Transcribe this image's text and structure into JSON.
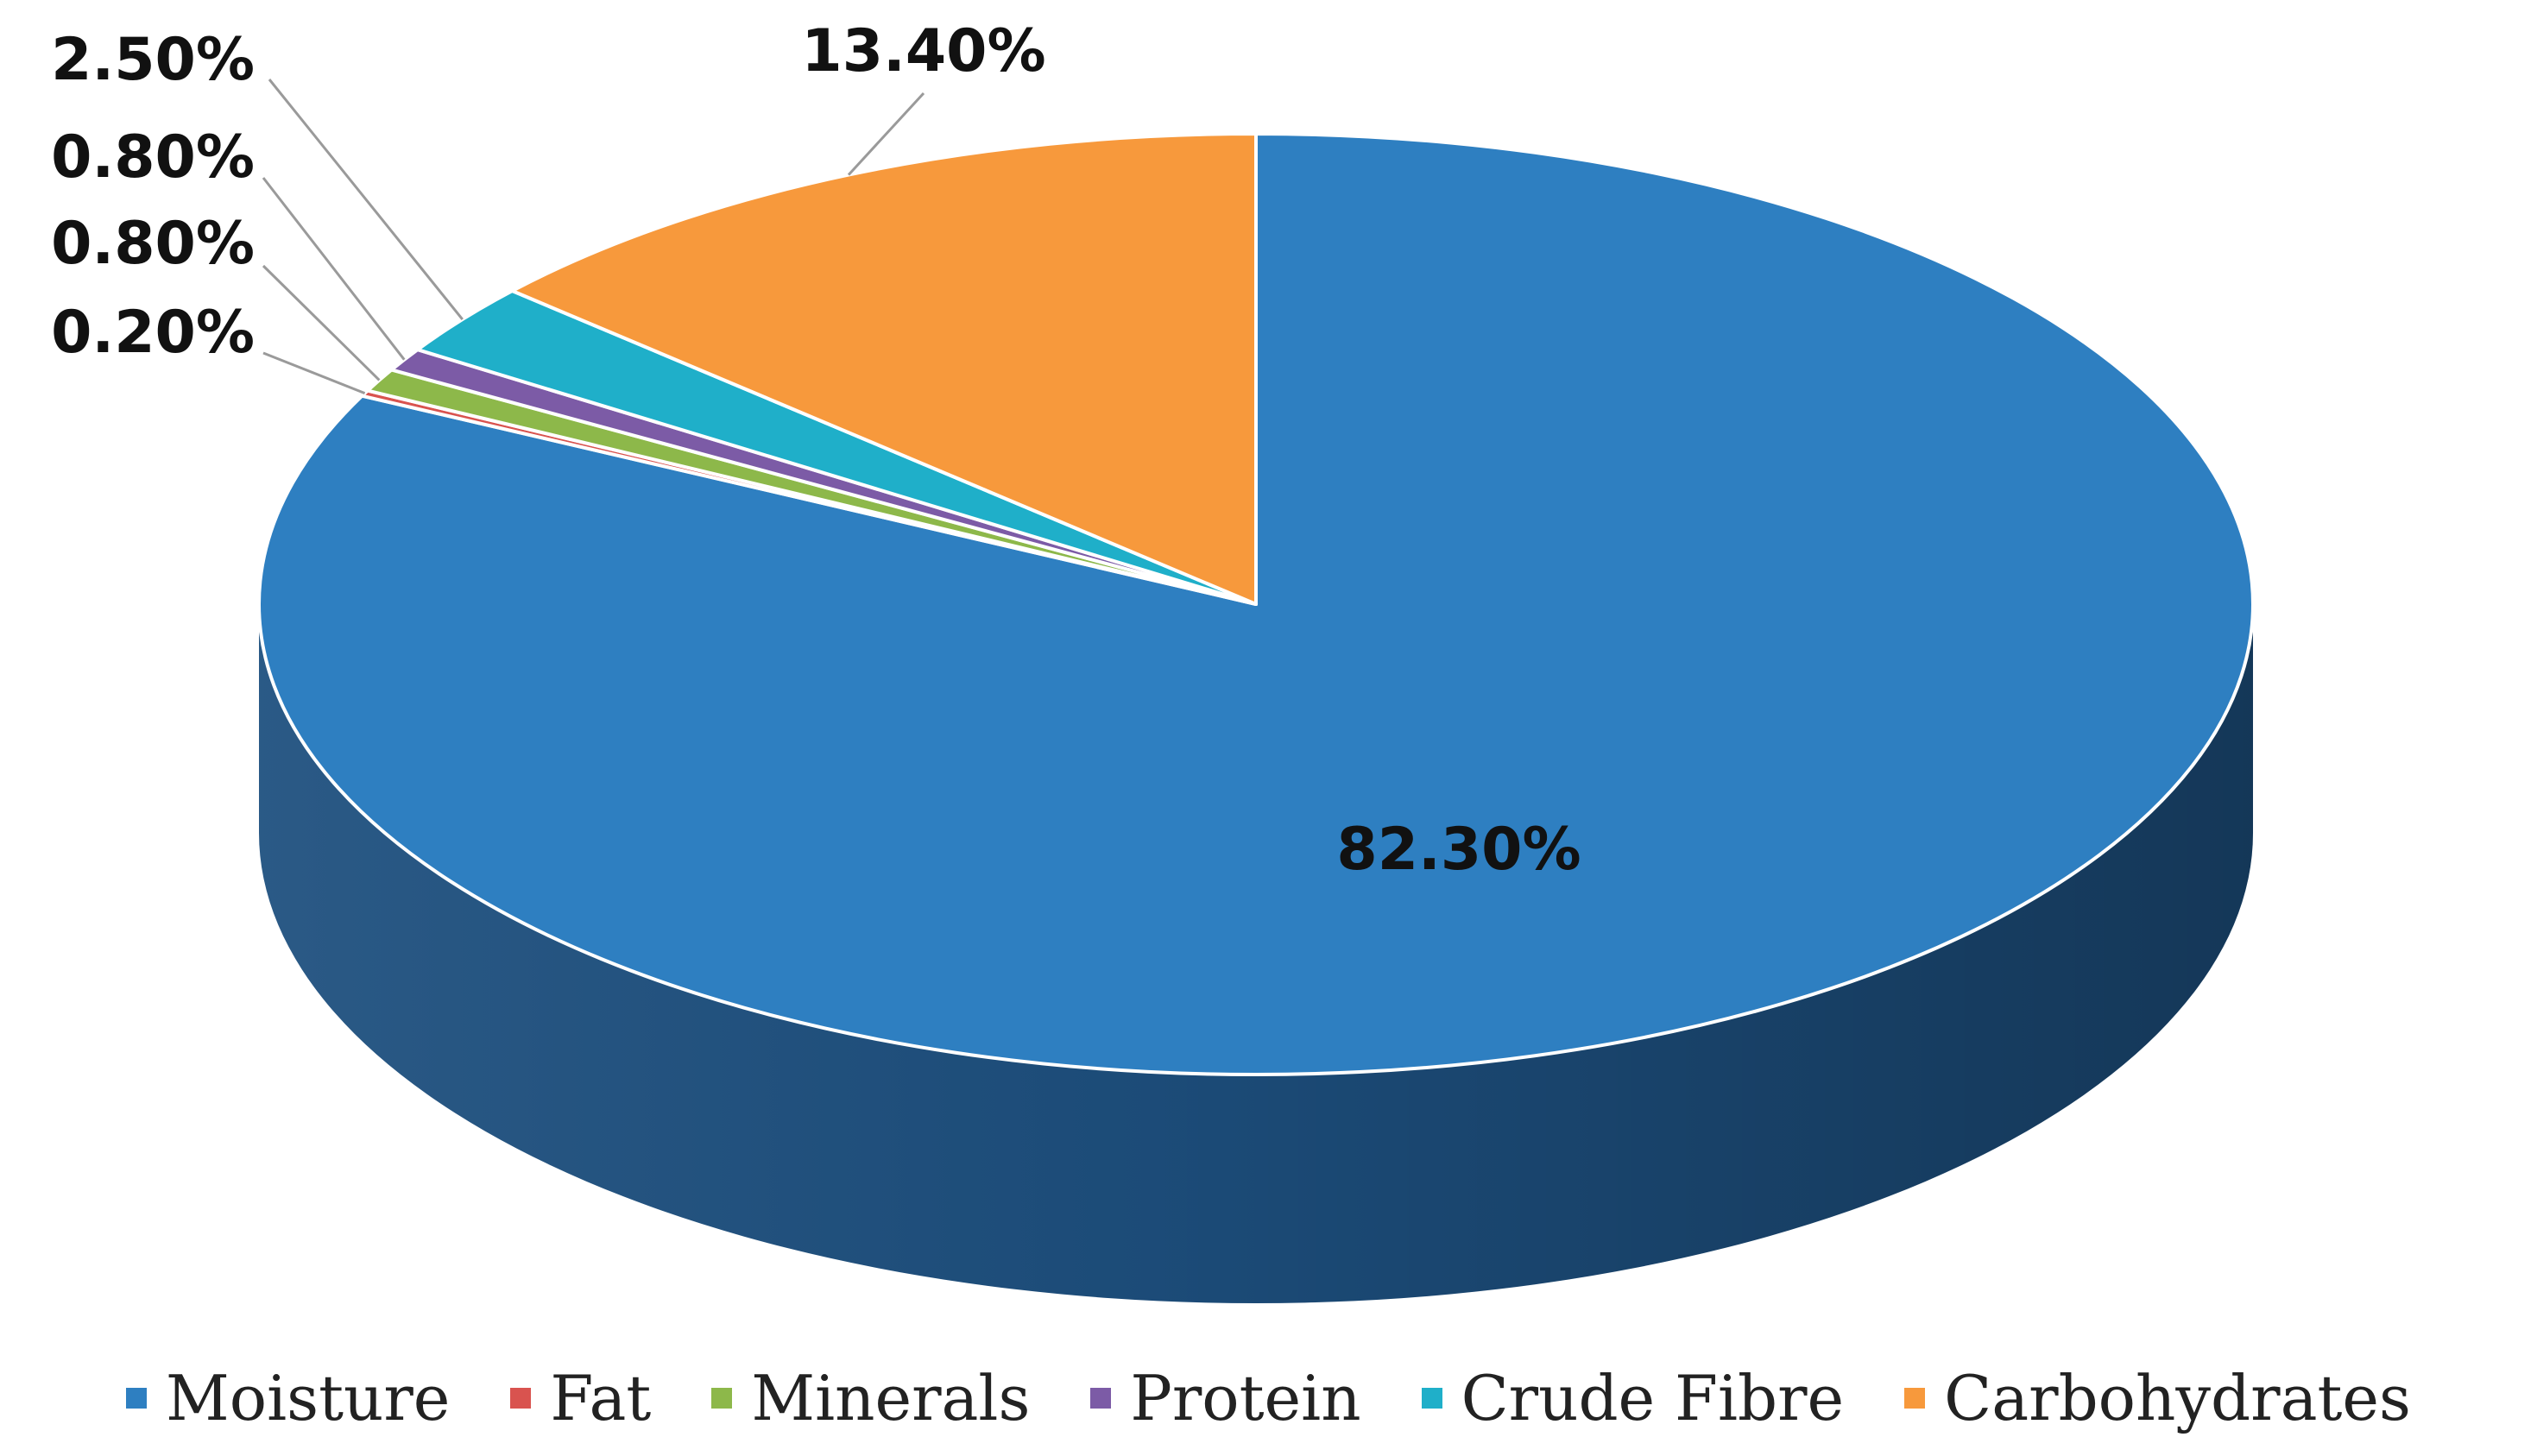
{
  "chart_data": {
    "type": "pie",
    "style": "3d",
    "title": "",
    "categories": [
      "Moisture",
      "Fat",
      "Minerals",
      "Protein",
      "Crude Fibre",
      "Carbohydrates"
    ],
    "values": [
      82.3,
      0.2,
      0.8,
      0.8,
      2.5,
      13.4
    ],
    "labels": [
      "82.30%",
      "0.20%",
      "0.80%",
      "0.80%",
      "2.50%",
      "13.40%"
    ],
    "colors": [
      "#2E7FC1",
      "#D9534F",
      "#8DB84A",
      "#7C5BA6",
      "#1FAFC9",
      "#F7993C"
    ],
    "side_colors": [
      "#1D4F7E",
      "#8A2F2C",
      "#587A2B",
      "#4D3A6A",
      "#147282",
      "#A5621F"
    ],
    "legend_position": "bottom"
  }
}
